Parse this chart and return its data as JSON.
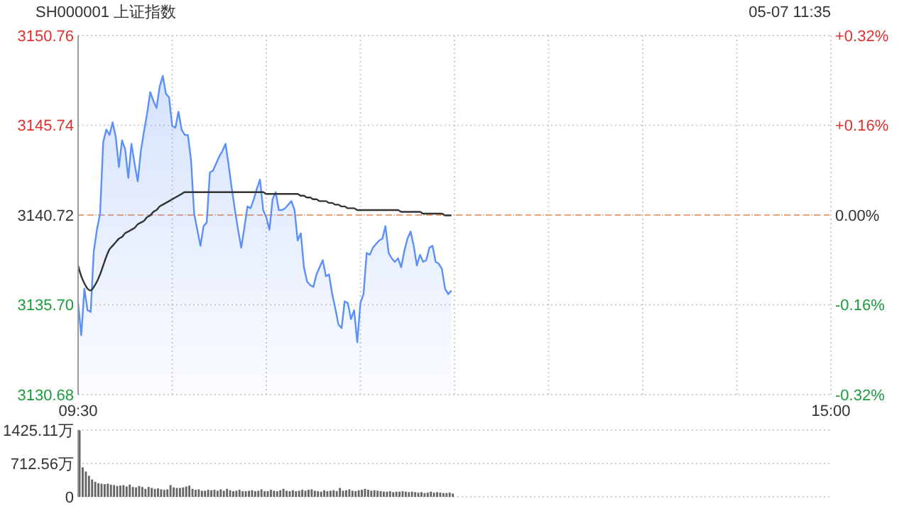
{
  "chart_data": [
    {
      "type": "area",
      "title": "SH000001 上证指数",
      "annotations": [
        "05-07 11:35"
      ],
      "categories": [
        "09:30",
        null,
        null,
        null,
        null,
        null,
        null,
        null,
        null,
        null,
        null,
        null,
        null,
        null,
        null,
        null,
        null,
        null,
        null,
        null,
        null,
        null,
        null,
        null,
        null,
        null,
        null,
        null,
        null,
        null,
        null,
        null,
        null,
        null,
        null,
        null,
        null,
        null,
        null,
        null,
        null,
        null,
        null,
        null,
        null,
        null,
        null,
        null,
        null,
        null,
        null,
        null,
        null,
        null,
        null,
        null,
        null,
        null,
        null,
        null,
        null,
        null,
        null,
        null,
        null,
        null,
        null,
        null,
        null,
        null,
        null,
        null,
        null,
        null,
        null,
        null,
        null,
        null,
        null,
        null,
        null,
        null,
        null,
        null,
        null,
        null,
        null,
        null,
        null,
        null,
        null,
        null,
        null,
        null,
        null,
        null,
        null,
        null,
        null,
        null,
        null,
        null,
        null,
        null,
        null,
        null,
        null,
        null,
        null,
        null,
        null,
        null,
        null,
        null,
        null,
        null,
        null,
        null,
        null,
        null,
        null,
        null,
        null,
        null,
        null,
        null,
        null,
        null,
        null,
        null,
        null,
        null,
        null,
        null,
        null,
        null,
        null,
        null,
        null,
        null,
        null,
        null,
        null,
        null,
        null,
        null,
        null,
        null,
        null,
        null,
        null,
        null,
        null,
        null,
        null,
        null,
        null,
        null,
        null,
        null,
        null,
        null,
        null,
        null,
        null,
        null,
        null,
        null,
        null,
        null,
        null,
        null,
        null,
        null,
        null,
        null,
        null,
        null,
        null,
        null,
        null,
        null,
        null,
        null,
        null,
        null,
        null,
        null,
        null,
        null,
        null,
        null,
        null,
        null,
        null,
        null,
        null,
        null,
        null,
        null,
        null,
        null,
        null,
        null,
        null,
        null,
        null,
        null,
        null,
        null,
        null,
        null,
        null,
        null,
        null,
        null,
        null,
        null,
        null,
        null,
        null,
        null,
        null,
        null,
        null,
        null,
        null,
        null,
        null,
        null,
        null,
        null,
        null,
        null,
        null,
        null,
        null,
        null,
        null,
        null,
        "15:00"
      ],
      "ylim": [
        3130.68,
        3150.76
      ],
      "yticks": [
        {
          "value": 3130.68,
          "label": "3130.68"
        },
        {
          "value": 3135.7,
          "label": "3135.70"
        },
        {
          "value": 3140.72,
          "label": "3140.72"
        },
        {
          "value": 3145.74,
          "label": "3145.74"
        },
        {
          "value": 3150.76,
          "label": "3150.76"
        }
      ],
      "y2lim": [
        -0.32,
        0.32
      ],
      "y2ticks": [
        {
          "value": -0.32,
          "label": "-0.32%"
        },
        {
          "value": -0.16,
          "label": "-0.16%"
        },
        {
          "value": 0,
          "label": "0.00%"
        },
        {
          "value": 0.16,
          "label": "+0.16%"
        },
        {
          "value": 0.32,
          "label": "+0.32%"
        }
      ],
      "grid": true,
      "ref_lines": [
        {
          "axis": "y",
          "value": 3140.72,
          "color": "#f0a070",
          "line_style": "dashed"
        }
      ],
      "series": [
        {
          "type": "area",
          "color": "#5b8ff9",
          "values": [
            3135.8,
            3134.0,
            3136.6,
            3135.4,
            3135.3,
            3138.7,
            3139.9,
            3140.8,
            3144.8,
            3145.5,
            3145.2,
            3145.9,
            3145.1,
            3143.4,
            3144.9,
            3144.4,
            3142.8,
            3144.7,
            3143.6,
            3142.6,
            3144.3,
            3145.4,
            3146.4,
            3147.6,
            3147.1,
            3146.7,
            3147.9,
            3148.5,
            3147.5,
            3147.3,
            3145.7,
            3145.6,
            3146.5,
            3145.5,
            3145.2,
            3145.2,
            3143.8,
            3140.8,
            3139.9,
            3139.0,
            3140.1,
            3140.3,
            3143.1,
            3143.2,
            3143.6,
            3144.0,
            3144.3,
            3144.7,
            3143.5,
            3142.2,
            3141.0,
            3139.9,
            3138.9,
            3140.0,
            3141.2,
            3141.1,
            3141.6,
            3142.2,
            3142.7,
            3141.0,
            3140.6,
            3139.9,
            3141.6,
            3142.0,
            3141.0,
            3141.0,
            3141.1,
            3141.3,
            3141.5,
            3141.0,
            3139.3,
            3139.7,
            3137.8,
            3137.0,
            3136.8,
            3136.7,
            3137.4,
            3137.8,
            3138.2,
            3137.3,
            3137.4,
            3136.3,
            3135.5,
            3134.6,
            3134.4,
            3135.9,
            3135.8,
            3134.9,
            3135.4,
            3133.6,
            3135.8,
            3136.3,
            3138.6,
            3138.5,
            3138.9,
            3139.1,
            3139.3,
            3139.4,
            3140.1,
            3138.6,
            3138.3,
            3138.1,
            3138.3,
            3137.8,
            3138.7,
            3139.4,
            3139.8,
            3139.0,
            3137.9,
            3138.5,
            3138.1,
            3138.2,
            3138.9,
            3139.0,
            3138.1,
            3138.0,
            3137.7,
            3136.6,
            3136.3,
            3136.5,
            null,
            null,
            null,
            null,
            null,
            null,
            null,
            null,
            null,
            null,
            null,
            null,
            null,
            null,
            null,
            null,
            null,
            null,
            null,
            null,
            null,
            null,
            null,
            null,
            null,
            null,
            null,
            null,
            null,
            null,
            null,
            null,
            null,
            null,
            null,
            null,
            null,
            null,
            null,
            null,
            null,
            null,
            null,
            null,
            null,
            null,
            null,
            null,
            null,
            null,
            null,
            null,
            null,
            null,
            null,
            null,
            null,
            null,
            null,
            null,
            null,
            null,
            null,
            null,
            null,
            null,
            null,
            null,
            null,
            null,
            null,
            null,
            null,
            null,
            null,
            null,
            null,
            null,
            null,
            null,
            null,
            null,
            null,
            null,
            null,
            null,
            null,
            null,
            null,
            null,
            null,
            null,
            null,
            null,
            null,
            null,
            null,
            null,
            null,
            null,
            null,
            null,
            null,
            null,
            null,
            null,
            null,
            null,
            null,
            null,
            null,
            null,
            null,
            null,
            null,
            null,
            null,
            null,
            null,
            null,
            null
          ]
        },
        {
          "type": "line",
          "color": "#333333",
          "values": [
            3137.9,
            3137.3,
            3136.9,
            3136.6,
            3136.5,
            3136.7,
            3137.0,
            3137.4,
            3137.9,
            3138.4,
            3138.8,
            3139.0,
            3139.2,
            3139.4,
            3139.5,
            3139.7,
            3139.8,
            3139.9,
            3140.0,
            3140.2,
            3140.3,
            3140.4,
            3140.6,
            3140.7,
            3140.9,
            3141.0,
            3141.2,
            3141.3,
            3141.4,
            3141.5,
            3141.6,
            3141.7,
            3141.8,
            3141.9,
            3142.0,
            3142.0,
            3142.0,
            3142.0,
            3142.0,
            3142.0,
            3142.0,
            3142.0,
            3142.0,
            3142.0,
            3142.0,
            3142.0,
            3142.0,
            3142.0,
            3142.0,
            3142.0,
            3142.0,
            3142.0,
            3142.0,
            3142.0,
            3142.0,
            3142.0,
            3142.0,
            3142.0,
            3142.0,
            3142.0,
            3141.9,
            3141.9,
            3141.9,
            3141.9,
            3141.9,
            3141.9,
            3141.9,
            3141.9,
            3141.9,
            3141.9,
            3141.9,
            3141.8,
            3141.8,
            3141.7,
            3141.7,
            3141.6,
            3141.6,
            3141.5,
            3141.5,
            3141.5,
            3141.4,
            3141.4,
            3141.3,
            3141.3,
            3141.2,
            3141.2,
            3141.1,
            3141.1,
            3141.1,
            3141.0,
            3141.0,
            3141.0,
            3141.0,
            3141.0,
            3141.0,
            3141.0,
            3141.0,
            3141.0,
            3141.0,
            3141.0,
            3141.0,
            3141.0,
            3141.0,
            3140.9,
            3140.9,
            3140.9,
            3140.9,
            3140.9,
            3140.9,
            3140.9,
            3140.8,
            3140.8,
            3140.8,
            3140.8,
            3140.8,
            3140.8,
            3140.8,
            3140.7,
            3140.7,
            3140.7,
            null,
            null,
            null,
            null,
            null,
            null,
            null,
            null,
            null,
            null,
            null,
            null,
            null,
            null,
            null,
            null,
            null,
            null,
            null,
            null,
            null,
            null,
            null,
            null,
            null,
            null,
            null,
            null,
            null,
            null,
            null,
            null,
            null,
            null,
            null,
            null,
            null,
            null,
            null,
            null,
            null,
            null,
            null,
            null,
            null,
            null,
            null,
            null,
            null,
            null,
            null,
            null,
            null,
            null,
            null,
            null,
            null,
            null,
            null,
            null,
            null,
            null,
            null,
            null,
            null,
            null,
            null,
            null,
            null,
            null,
            null,
            null,
            null,
            null,
            null,
            null,
            null,
            null,
            null,
            null,
            null,
            null,
            null,
            null,
            null,
            null,
            null,
            null,
            null,
            null,
            null,
            null,
            null,
            null,
            null,
            null,
            null,
            null,
            null,
            null,
            null,
            null,
            null,
            null,
            null,
            null,
            null,
            null,
            null,
            null,
            null,
            null,
            null,
            null,
            null,
            null,
            null,
            null,
            null,
            null,
            null
          ]
        }
      ]
    },
    {
      "type": "bar",
      "color": "#666666",
      "ylim": [
        0,
        1425.11
      ],
      "yticks": [
        0,
        {
          "value": 712.56,
          "label": "712.56万"
        },
        {
          "value": 1425.11,
          "label": "1425.11万"
        }
      ],
      "grid": "y",
      "tick_labels": "y",
      "categories": [
        null,
        null,
        null,
        null,
        null,
        null,
        null,
        null,
        null,
        null,
        null,
        null,
        null,
        null,
        null,
        null,
        null,
        null,
        null,
        null,
        null,
        null,
        null,
        null,
        null,
        null,
        null,
        null,
        null,
        null,
        null,
        null,
        null,
        null,
        null,
        null,
        null,
        null,
        null,
        null,
        null,
        null,
        null,
        null,
        null,
        null,
        null,
        null,
        null,
        null,
        null,
        null,
        null,
        null,
        null,
        null,
        null,
        null,
        null,
        null,
        null,
        null,
        null,
        null,
        null,
        null,
        null,
        null,
        null,
        null,
        null,
        null,
        null,
        null,
        null,
        null,
        null,
        null,
        null,
        null,
        null,
        null,
        null,
        null,
        null,
        null,
        null,
        null,
        null,
        null,
        null,
        null,
        null,
        null,
        null,
        null,
        null,
        null,
        null,
        null,
        null,
        null,
        null,
        null,
        null,
        null,
        null,
        null,
        null,
        null,
        null,
        null,
        null,
        null,
        null,
        null,
        null,
        null,
        null,
        null,
        null,
        null,
        null,
        null,
        null,
        null,
        null,
        null,
        null,
        null,
        null,
        null,
        null,
        null,
        null,
        null,
        null,
        null,
        null,
        null,
        null,
        null,
        null,
        null,
        null,
        null,
        null,
        null,
        null,
        null,
        null,
        null,
        null,
        null,
        null,
        null,
        null,
        null,
        null,
        null,
        null,
        null,
        null,
        null,
        null,
        null,
        null,
        null,
        null,
        null,
        null,
        null,
        null,
        null,
        null,
        null,
        null,
        null,
        null,
        null,
        null,
        null,
        null,
        null,
        null,
        null,
        null,
        null,
        null,
        null,
        null,
        null,
        null,
        null,
        null,
        null,
        null,
        null,
        null,
        null,
        null,
        null,
        null,
        null,
        null,
        null,
        null,
        null,
        null,
        null,
        null,
        null,
        null,
        null,
        null,
        null,
        null,
        null,
        null,
        null,
        null,
        null,
        null,
        null,
        null,
        null,
        null,
        null,
        null,
        null,
        null,
        null,
        null,
        null,
        null,
        null,
        null,
        null,
        null,
        null,
        null
      ],
      "values": [
        1420,
        630,
        540,
        450,
        370,
        320,
        290,
        280,
        270,
        280,
        260,
        250,
        230,
        240,
        250,
        220,
        260,
        210,
        200,
        230,
        210,
        170,
        210,
        190,
        170,
        180,
        160,
        150,
        160,
        250,
        200,
        190,
        190,
        200,
        220,
        240,
        170,
        150,
        160,
        130,
        130,
        150,
        140,
        150,
        130,
        160,
        130,
        170,
        140,
        120,
        130,
        150,
        120,
        120,
        130,
        140,
        120,
        130,
        160,
        120,
        120,
        150,
        130,
        120,
        140,
        170,
        130,
        120,
        140,
        120,
        130,
        150,
        130,
        150,
        160,
        130,
        120,
        110,
        140,
        120,
        130,
        140,
        120,
        190,
        130,
        140,
        160,
        130,
        120,
        140,
        150,
        170,
        150,
        130,
        140,
        130,
        120,
        110,
        110,
        120,
        100,
        110,
        110,
        120,
        110,
        100,
        110,
        100,
        90,
        100,
        80,
        90,
        110,
        90,
        100,
        90,
        80,
        80,
        90,
        70,
        null,
        null,
        null,
        null,
        null,
        null,
        null,
        null,
        null,
        null,
        null,
        null,
        null,
        null,
        null,
        null,
        null,
        null,
        null,
        null,
        null,
        null,
        null,
        null,
        null,
        null,
        null,
        null,
        null,
        null,
        null,
        null,
        null,
        null,
        null,
        null,
        null,
        null,
        null,
        null,
        null,
        null,
        null,
        null,
        null,
        null,
        null,
        null,
        null,
        null,
        null,
        null,
        null,
        null,
        null,
        null,
        null,
        null,
        null,
        null,
        null,
        null,
        null,
        null,
        null,
        null,
        null,
        null,
        null,
        null,
        null,
        null,
        null,
        null,
        null,
        null,
        null,
        null,
        null,
        null,
        null,
        null,
        null,
        null,
        null,
        null,
        null,
        null,
        null,
        null,
        null,
        null,
        null,
        null,
        null,
        null,
        null,
        null,
        null,
        null,
        null,
        null,
        null,
        null,
        null,
        null,
        null,
        null,
        null,
        null,
        null,
        null,
        null,
        null,
        null,
        null,
        null,
        null,
        null,
        null,
        null
      ]
    }
  ]
}
